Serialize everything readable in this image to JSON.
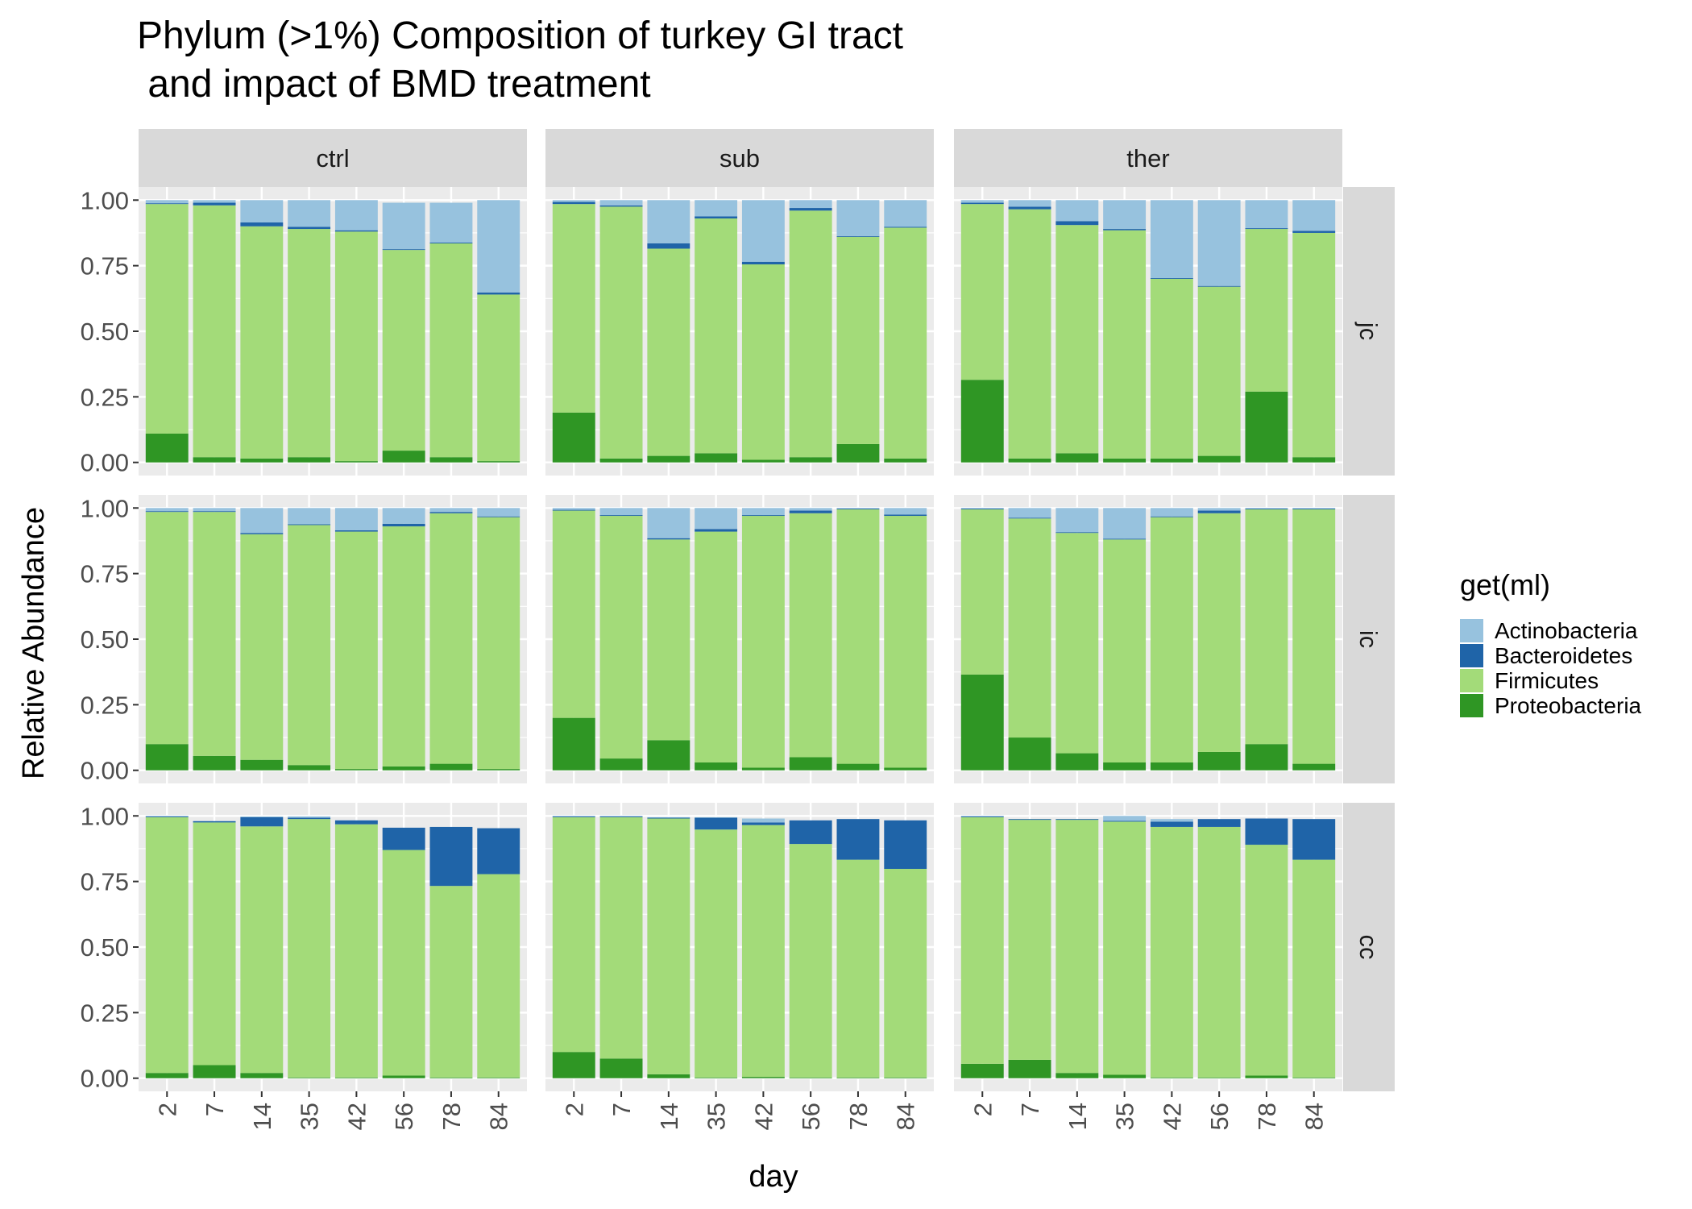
{
  "chart_data": {
    "type": "bar",
    "stacked": true,
    "title": "Phylum (>1%) Composition of turkey GI tract",
    "subtitle": " and impact of BMD treatment",
    "xlabel": "day",
    "ylabel": "Relative Abundance",
    "ylim": [
      0,
      1
    ],
    "yticks": [
      "0.00",
      "0.25",
      "0.50",
      "0.75",
      "1.00"
    ],
    "categories": [
      "2",
      "7",
      "14",
      "35",
      "42",
      "56",
      "78",
      "84"
    ],
    "facet_columns": [
      "ctrl",
      "sub",
      "ther"
    ],
    "facet_rows": [
      "jc",
      "ic",
      "cc"
    ],
    "legend": {
      "title": "get(ml)",
      "placement": "right",
      "items": [
        {
          "name": "Actinobacteria",
          "color": "#97c2de"
        },
        {
          "name": "Bacteroidetes",
          "color": "#1f64a8"
        },
        {
          "name": "Firmicutes",
          "color": "#a3db79"
        },
        {
          "name": "Proteobacteria",
          "color": "#2f9624"
        }
      ]
    },
    "stack_order": [
      "Proteobacteria",
      "Firmicutes",
      "Bacteroidetes",
      "Actinobacteria"
    ],
    "panels": [
      {
        "row": "jc",
        "col": "ctrl",
        "Proteobacteria": [
          0.11,
          0.02,
          0.015,
          0.02,
          0.005,
          0.045,
          0.02,
          0.005
        ],
        "Firmicutes": [
          0.875,
          0.96,
          0.885,
          0.87,
          0.875,
          0.765,
          0.815,
          0.635
        ],
        "Bacteroidetes": [
          0.003,
          0.01,
          0.015,
          0.008,
          0.005,
          0.003,
          0.003,
          0.008
        ],
        "Actinobacteria": [
          0.012,
          0.01,
          0.085,
          0.102,
          0.115,
          0.177,
          0.152,
          0.352
        ]
      },
      {
        "row": "jc",
        "col": "sub",
        "Proteobacteria": [
          0.19,
          0.015,
          0.025,
          0.035,
          0.01,
          0.02,
          0.07,
          0.015
        ],
        "Firmicutes": [
          0.795,
          0.96,
          0.79,
          0.895,
          0.745,
          0.94,
          0.79,
          0.88
        ],
        "Bacteroidetes": [
          0.008,
          0.005,
          0.02,
          0.008,
          0.01,
          0.01,
          0.003,
          0.003
        ],
        "Actinobacteria": [
          0.007,
          0.02,
          0.165,
          0.062,
          0.235,
          0.03,
          0.137,
          0.102
        ]
      },
      {
        "row": "jc",
        "col": "ther",
        "Proteobacteria": [
          0.315,
          0.015,
          0.035,
          0.015,
          0.015,
          0.025,
          0.27,
          0.02
        ],
        "Firmicutes": [
          0.67,
          0.95,
          0.87,
          0.87,
          0.685,
          0.645,
          0.62,
          0.855
        ],
        "Bacteroidetes": [
          0.005,
          0.01,
          0.015,
          0.005,
          0.003,
          0.003,
          0.003,
          0.008
        ],
        "Actinobacteria": [
          0.01,
          0.025,
          0.08,
          0.11,
          0.297,
          0.327,
          0.107,
          0.117
        ]
      },
      {
        "row": "ic",
        "col": "ctrl",
        "Proteobacteria": [
          0.1,
          0.055,
          0.04,
          0.02,
          0.005,
          0.015,
          0.025,
          0.005
        ],
        "Firmicutes": [
          0.885,
          0.93,
          0.86,
          0.915,
          0.905,
          0.915,
          0.955,
          0.96
        ],
        "Bacteroidetes": [
          0.003,
          0.003,
          0.005,
          0.003,
          0.005,
          0.01,
          0.005,
          0.003
        ],
        "Actinobacteria": [
          0.012,
          0.012,
          0.095,
          0.062,
          0.085,
          0.06,
          0.015,
          0.032
        ]
      },
      {
        "row": "ic",
        "col": "sub",
        "Proteobacteria": [
          0.2,
          0.045,
          0.115,
          0.03,
          0.01,
          0.05,
          0.025,
          0.01
        ],
        "Firmicutes": [
          0.79,
          0.925,
          0.765,
          0.88,
          0.96,
          0.93,
          0.97,
          0.96
        ],
        "Bacteroidetes": [
          0.003,
          0.003,
          0.005,
          0.01,
          0.003,
          0.01,
          0.003,
          0.005
        ],
        "Actinobacteria": [
          0.007,
          0.027,
          0.115,
          0.08,
          0.027,
          0.01,
          0.002,
          0.025
        ]
      },
      {
        "row": "ic",
        "col": "ther",
        "Proteobacteria": [
          0.365,
          0.125,
          0.065,
          0.03,
          0.03,
          0.07,
          0.1,
          0.025
        ],
        "Firmicutes": [
          0.63,
          0.835,
          0.84,
          0.85,
          0.935,
          0.91,
          0.895,
          0.97
        ],
        "Bacteroidetes": [
          0.003,
          0.003,
          0.003,
          0.003,
          0.003,
          0.01,
          0.003,
          0.003
        ],
        "Actinobacteria": [
          0.002,
          0.037,
          0.092,
          0.117,
          0.032,
          0.01,
          0.002,
          0.002
        ]
      },
      {
        "row": "cc",
        "col": "ctrl",
        "Proteobacteria": [
          0.02,
          0.05,
          0.02,
          0.003,
          0.003,
          0.01,
          0.003,
          0.003
        ],
        "Firmicutes": [
          0.975,
          0.925,
          0.94,
          0.985,
          0.965,
          0.86,
          0.73,
          0.775
        ],
        "Bacteroidetes": [
          0.003,
          0.005,
          0.035,
          0.005,
          0.015,
          0.085,
          0.225,
          0.175
        ],
        "Actinobacteria": [
          0.002,
          0.0,
          0.003,
          0.005,
          0.0,
          0.0,
          0.0,
          0.0
        ]
      },
      {
        "row": "cc",
        "col": "sub",
        "Proteobacteria": [
          0.1,
          0.075,
          0.015,
          0.003,
          0.005,
          0.003,
          0.003,
          0.003
        ],
        "Firmicutes": [
          0.895,
          0.92,
          0.975,
          0.945,
          0.96,
          0.89,
          0.83,
          0.795
        ],
        "Bacteroidetes": [
          0.003,
          0.003,
          0.003,
          0.045,
          0.01,
          0.09,
          0.155,
          0.185
        ],
        "Actinobacteria": [
          0.002,
          0.002,
          0.002,
          0.002,
          0.015,
          0.0,
          0.0,
          0.0
        ]
      },
      {
        "row": "cc",
        "col": "ther",
        "Proteobacteria": [
          0.055,
          0.07,
          0.02,
          0.013,
          0.003,
          0.003,
          0.01,
          0.003
        ],
        "Firmicutes": [
          0.94,
          0.915,
          0.965,
          0.965,
          0.955,
          0.955,
          0.88,
          0.83
        ],
        "Bacteroidetes": [
          0.003,
          0.003,
          0.003,
          0.003,
          0.02,
          0.03,
          0.1,
          0.155
        ],
        "Actinobacteria": [
          0.002,
          0.0,
          0.0,
          0.019,
          0.01,
          0.0,
          0.0,
          0.0
        ]
      }
    ]
  }
}
